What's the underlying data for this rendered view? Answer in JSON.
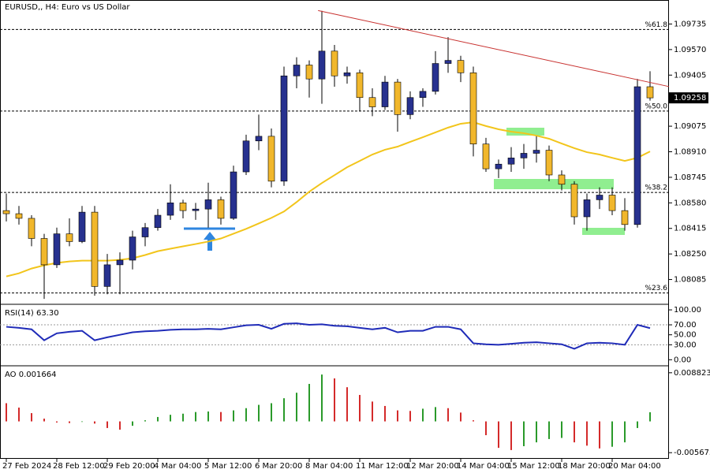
{
  "chart_data": [
    {
      "type": "candlestick",
      "title": "EURUSD,, H4:  Euro vs US Dollar",
      "categories": [
        "27 Feb 2024",
        null,
        null,
        null,
        "28 Feb 12:00",
        null,
        null,
        null,
        "29 Feb 20:00",
        null,
        null,
        null,
        "4 Mar 04:00",
        null,
        null,
        null,
        "5 Mar 12:00",
        null,
        null,
        null,
        "6 Mar 20:00",
        null,
        null,
        null,
        "8 Mar 04:00",
        null,
        null,
        null,
        "11 Mar 12:00",
        null,
        null,
        null,
        "12 Mar 20:00",
        null,
        null,
        null,
        "14 Mar 04:00",
        null,
        null,
        null,
        "15 Mar 12:00",
        null,
        null,
        null,
        "18 Mar 20:00",
        null,
        null,
        null,
        "20 Mar 04:00",
        null,
        null,
        null
      ],
      "open": [
        1.0853,
        1.0851,
        1.0848,
        1.0835,
        1.0818,
        1.0838,
        1.0833,
        1.0852,
        1.0804,
        1.0818,
        1.0821,
        1.0836,
        1.0842,
        1.085,
        1.0858,
        1.0853,
        1.0854,
        1.086,
        1.0848,
        1.0878,
        1.0898,
        1.0901,
        1.0872,
        1.094,
        1.0947,
        1.0938,
        1.0956,
        1.094,
        1.0942,
        1.0926,
        1.092,
        1.0936,
        1.0915,
        1.0926,
        1.093,
        1.0948,
        1.095,
        1.0942,
        1.0896,
        1.088,
        1.0883,
        1.0887,
        1.089,
        1.0892,
        1.0876,
        1.087,
        1.0849,
        1.086,
        1.0863,
        1.0853,
        1.0844,
        1.0933
      ],
      "high": [
        1.0864,
        1.0856,
        1.085,
        1.0838,
        1.0842,
        1.0848,
        1.0856,
        1.0856,
        1.0825,
        1.0826,
        1.084,
        1.0845,
        1.0854,
        1.087,
        1.086,
        1.0858,
        1.0871,
        1.0862,
        1.0882,
        1.0902,
        1.0915,
        1.0906,
        1.0946,
        1.0952,
        1.095,
        1.0982,
        1.096,
        1.0946,
        1.0944,
        1.0932,
        1.094,
        1.0938,
        1.093,
        1.0932,
        1.0956,
        1.0965,
        1.0953,
        1.0946,
        1.09,
        1.0886,
        1.0894,
        1.0896,
        1.0901,
        1.0895,
        1.0879,
        1.0872,
        1.0864,
        1.0868,
        1.0868,
        1.0861,
        1.0938,
        1.0943
      ],
      "low": [
        1.0846,
        1.0844,
        1.083,
        1.0796,
        1.0816,
        1.083,
        1.0832,
        1.0798,
        1.0799,
        1.0799,
        1.0815,
        1.083,
        1.084,
        1.0847,
        1.0848,
        1.0847,
        1.0842,
        1.0844,
        1.0847,
        1.0876,
        1.0892,
        1.0868,
        1.0869,
        1.0932,
        1.0926,
        1.0922,
        1.0933,
        1.0935,
        1.0917,
        1.0914,
        1.0918,
        1.0904,
        1.0912,
        1.092,
        1.0928,
        1.0942,
        1.0936,
        1.0888,
        1.0878,
        1.0874,
        1.0878,
        1.088,
        1.0884,
        1.0872,
        1.0866,
        1.0844,
        1.084,
        1.0854,
        1.085,
        1.084,
        1.0842,
        1.0924
      ],
      "close": [
        1.0851,
        1.0848,
        1.0835,
        1.0818,
        1.0838,
        1.0833,
        1.0852,
        1.0804,
        1.0818,
        1.0821,
        1.0836,
        1.0842,
        1.085,
        1.0858,
        1.0853,
        1.0854,
        1.086,
        1.0848,
        1.0878,
        1.0898,
        1.0901,
        1.0872,
        1.094,
        1.0947,
        1.0938,
        1.0956,
        1.094,
        1.0942,
        1.0926,
        1.092,
        1.0936,
        1.0915,
        1.0926,
        1.093,
        1.0948,
        1.095,
        1.0942,
        1.0896,
        1.088,
        1.0883,
        1.0887,
        1.089,
        1.0892,
        1.0876,
        1.087,
        1.0849,
        1.086,
        1.0863,
        1.0853,
        1.0844,
        1.0933,
        1.09258
      ],
      "colors": {
        "up": "#27318f",
        "down": "#f1b72c"
      },
      "ma": {
        "color": "#f2c51b",
        "values": [
          1.08105,
          1.08125,
          1.08156,
          1.08177,
          1.08192,
          1.08202,
          1.08207,
          1.08207,
          1.08207,
          1.08212,
          1.08222,
          1.08243,
          1.08268,
          1.08284,
          1.08299,
          1.08314,
          1.0833,
          1.0835,
          1.08381,
          1.08412,
          1.08447,
          1.08483,
          1.08524,
          1.08585,
          1.08652,
          1.08708,
          1.08759,
          1.0881,
          1.08851,
          1.08892,
          1.08923,
          1.08943,
          1.08974,
          1.09004,
          1.09035,
          1.09066,
          1.09091,
          1.09101,
          1.09076,
          1.09055,
          1.0904,
          1.0903,
          1.09014,
          1.08994,
          1.08963,
          1.08933,
          1.08907,
          1.08892,
          1.08871,
          1.08851,
          1.08871,
          1.08912
        ]
      },
      "levels": [
        {
          "value": 1.097,
          "label": "%61.8"
        },
        {
          "value": 1.09173,
          "label": "%50.0"
        },
        {
          "value": 1.08647,
          "label": "%38.2"
        },
        {
          "value": 1.07998,
          "label": "%23.6"
        }
      ],
      "trendline": {
        "color": "#c8312f",
        "x": [
          24.7,
          52.5
        ],
        "y": [
          1.09822,
          1.09331
        ]
      },
      "ylim": [
        1.0793,
        1.0989
      ],
      "yticks": [
        1.09735,
        {
          "value": 1.0957,
          "label": "1.09570"
        },
        1.09405,
        1.09075,
        {
          "value": 1.0891,
          "label": "1.08910"
        },
        1.08745,
        {
          "value": 1.0858,
          "label": "1.08580"
        },
        1.08415,
        {
          "value": 1.0825,
          "label": "1.08250"
        },
        1.08085
      ]
    },
    {
      "type": "line",
      "title": "RSI(14) 63.30",
      "color": "#1f2bb8",
      "values": [
        66,
        64,
        61,
        39,
        53,
        56,
        58,
        39,
        45,
        50,
        55,
        57,
        58,
        60,
        61,
        61,
        62,
        61,
        65,
        69,
        70,
        62,
        72,
        73,
        70,
        71,
        68,
        67,
        64,
        61,
        64,
        55,
        58,
        58,
        66,
        66,
        61,
        33,
        31,
        30,
        32,
        34,
        35,
        33,
        31,
        22,
        33,
        34,
        33,
        30,
        70,
        63.3
      ],
      "levels": [
        70,
        30
      ],
      "ylim": [
        -9,
        108
      ],
      "yticks": [
        {
          "value": 100,
          "label": "100.00"
        },
        {
          "value": 70,
          "label": "70.00"
        },
        {
          "value": 50,
          "label": "50.00"
        },
        {
          "value": 30,
          "label": "30.00"
        },
        {
          "value": 0,
          "label": "0.00"
        }
      ]
    },
    {
      "type": "bar",
      "title": "AO 0.001664",
      "values": [
        0.0033,
        0.0025,
        0.0015,
        0.0005,
        -0.0002,
        -0.0003,
        -0.0001,
        -0.0004,
        -0.0012,
        -0.0015,
        -0.0008,
        0.0002,
        0.0008,
        0.0012,
        0.0014,
        0.0017,
        0.0018,
        0.0017,
        0.002,
        0.0024,
        0.003,
        0.0033,
        0.0042,
        0.0052,
        0.0068,
        0.0085,
        0.0078,
        0.0062,
        0.0048,
        0.0036,
        0.0028,
        0.002,
        0.0019,
        0.0023,
        0.0026,
        0.0024,
        0.0016,
        0.0002,
        -0.0025,
        -0.0048,
        -0.0052,
        -0.0045,
        -0.0038,
        -0.0032,
        -0.003,
        -0.0038,
        -0.0044,
        -0.0049,
        -0.0046,
        -0.0038,
        -0.0012,
        0.001664
      ],
      "colors": {
        "up": "#2a9a2a",
        "down": "#d42a2a"
      },
      "ylim": [
        -0.0065,
        0.0098
      ],
      "yticks": [
        0.008823,
        -0.005673
      ]
    }
  ]
}
